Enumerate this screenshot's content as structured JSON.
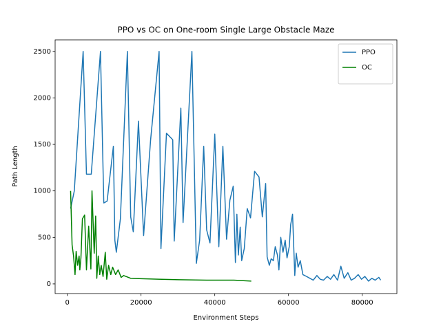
{
  "chart_data": {
    "type": "line",
    "title": "PPO vs OC on One-room Single Large Obstacle Maze",
    "xlabel": "Environment Steps",
    "ylabel": "Path Length",
    "xlim": [
      -3300,
      89400
    ],
    "ylim": [
      -104,
      2624
    ],
    "xticks": [
      0,
      20000,
      40000,
      60000,
      80000
    ],
    "yticks": [
      0,
      500,
      1000,
      1500,
      2000,
      2500
    ],
    "grid": false,
    "legend": "upper right",
    "series": [
      {
        "name": "PPO",
        "color": "#1f77b4",
        "x": [
          900,
          1900,
          4300,
          5200,
          6500,
          9000,
          9900,
          10800,
          12500,
          12900,
          13300,
          14400,
          16300,
          17200,
          17900,
          19300,
          20700,
          22600,
          24900,
          25400,
          26900,
          28600,
          29000,
          30800,
          31400,
          33800,
          35000,
          35900,
          37000,
          37800,
          38700,
          40000,
          41100,
          42200,
          43200,
          44100,
          45000,
          45600,
          46000,
          46400,
          46900,
          47300,
          48000,
          48800,
          49700,
          50800,
          52000,
          52900,
          53800,
          54200,
          54800,
          55300,
          55900,
          56400,
          57000,
          57400,
          57900,
          58500,
          59100,
          59600,
          60200,
          60600,
          61100,
          61700,
          62100,
          62600,
          63200,
          63900,
          64900,
          65800,
          66700,
          67700,
          68600,
          69500,
          70500,
          71400,
          72300,
          73300,
          74200,
          75100,
          76100,
          77000,
          77900,
          78900,
          79800,
          80700,
          81700,
          82600,
          83500,
          84500,
          85000
        ],
        "values": [
          810,
          1000,
          2500,
          1180,
          1180,
          2500,
          870,
          890,
          1480,
          470,
          340,
          700,
          2500,
          720,
          560,
          1750,
          520,
          1550,
          2500,
          380,
          1620,
          1550,
          460,
          1890,
          660,
          2500,
          220,
          470,
          1480,
          580,
          440,
          1610,
          400,
          1480,
          480,
          900,
          1050,
          230,
          750,
          310,
          610,
          250,
          380,
          810,
          710,
          1210,
          1150,
          720,
          1080,
          290,
          200,
          270,
          250,
          400,
          310,
          150,
          500,
          340,
          470,
          280,
          400,
          640,
          750,
          90,
          330,
          180,
          250,
          100,
          80,
          60,
          40,
          90,
          50,
          40,
          80,
          50,
          100,
          40,
          190,
          60,
          120,
          40,
          60,
          100,
          50,
          80,
          30,
          60,
          40,
          70,
          40
        ]
      },
      {
        "name": "OC",
        "color": "#008000",
        "x": [
          900,
          1300,
          1700,
          2100,
          2400,
          2800,
          3200,
          3400,
          3700,
          4100,
          4700,
          5200,
          5800,
          6400,
          6700,
          7300,
          7700,
          8000,
          8400,
          8800,
          9200,
          9700,
          10300,
          10700,
          11200,
          11800,
          12300,
          13100,
          13800,
          14600,
          15300,
          17200,
          20900,
          24700,
          30300,
          37800,
          45200,
          49900
        ],
        "values": [
          1000,
          420,
          300,
          100,
          350,
          200,
          300,
          150,
          280,
          700,
          740,
          150,
          620,
          160,
          1000,
          330,
          730,
          60,
          300,
          100,
          200,
          80,
          340,
          50,
          200,
          100,
          180,
          100,
          150,
          70,
          90,
          60,
          55,
          50,
          45,
          40,
          40,
          30
        ]
      }
    ]
  }
}
